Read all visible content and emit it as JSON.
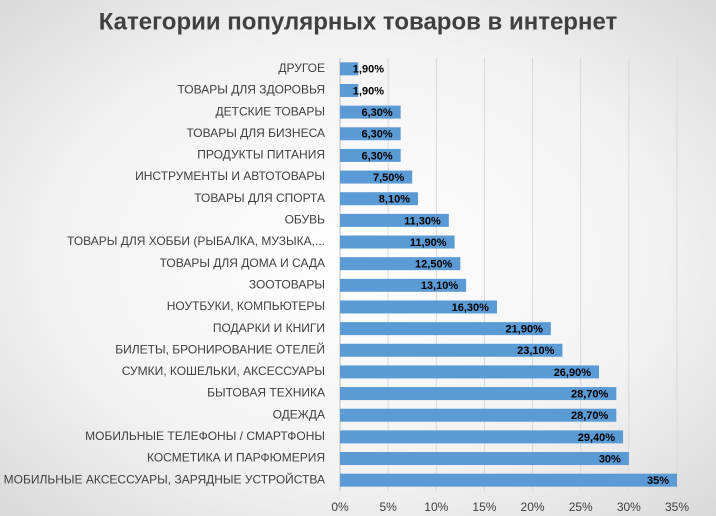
{
  "chart_data": {
    "type": "bar",
    "orientation": "horizontal",
    "title": "Категории популярных товаров в интернет",
    "categories": [
      "ДРУГОЕ",
      "ТОВАРЫ ДЛЯ ЗДОРОВЬЯ",
      "ДЕТСКИЕ ТОВАРЫ",
      "ТОВАРЫ ДЛЯ БИЗНЕСА",
      "ПРОДУКТЫ ПИТАНИЯ",
      "ИНСТРУМЕНТЫ И АВТОТОВАРЫ",
      "ТОВАРЫ ДЛЯ СПОРТА",
      "ОБУВЬ",
      "ТОВАРЫ ДЛЯ ХОББИ (РЫБАЛКА, МУЗЫКА,...",
      "ТОВАРЫ ДЛЯ ДОМА И САДА",
      "ЗООТОВАРЫ",
      "НОУТБУКИ, КОМПЬЮТЕРЫ",
      "ПОДАРКИ И КНИГИ",
      "БИЛЕТЫ, БРОНИРОВАНИЕ ОТЕЛЕЙ",
      "СУМКИ, КОШЕЛЬКИ, АКСЕССУАРЫ",
      "БЫТОВАЯ ТЕХНИКА",
      "ОДЕЖДА",
      "МОБИЛЬНЫЕ ТЕЛЕФОНЫ / СМАРТФОНЫ",
      "КОСМЕТИКА И ПАРФЮМЕРИЯ",
      "МОБИЛЬНЫЕ АКСЕССУАРЫ, ЗАРЯДНЫЕ УСТРОЙСТВА"
    ],
    "values": [
      1.9,
      1.9,
      6.3,
      6.3,
      6.3,
      7.5,
      8.1,
      11.3,
      11.9,
      12.5,
      13.1,
      16.3,
      21.9,
      23.1,
      26.9,
      28.7,
      28.7,
      29.4,
      30,
      35
    ],
    "value_labels": [
      "1,90%",
      "1,90%",
      "6,30%",
      "6,30%",
      "6,30%",
      "7,50%",
      "8,10%",
      "11,30%",
      "11,90%",
      "12,50%",
      "13,10%",
      "16,30%",
      "21,90%",
      "23,10%",
      "26,90%",
      "28,70%",
      "28,70%",
      "29,40%",
      "30%",
      "35%"
    ],
    "color": "#5b9bd5",
    "xlim": [
      0,
      35
    ],
    "xticks": [
      {
        "value": 0,
        "label": "0%"
      },
      {
        "value": 5,
        "label": "5%"
      },
      {
        "value": 10,
        "label": "10%"
      },
      {
        "value": 15,
        "label": "15%"
      },
      {
        "value": 20,
        "label": "20%"
      },
      {
        "value": 25,
        "label": "25%"
      },
      {
        "value": 30,
        "label": "30%"
      },
      {
        "value": 35,
        "label": "35%"
      }
    ],
    "grid": true
  }
}
